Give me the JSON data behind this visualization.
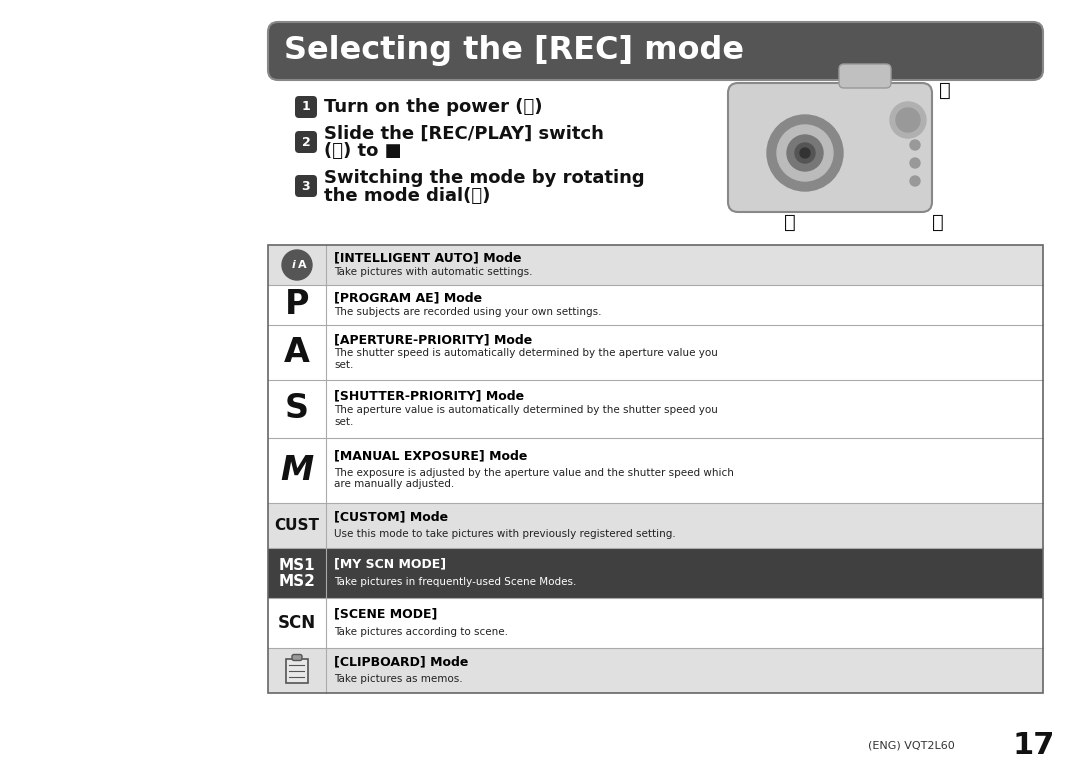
{
  "bg_color": "#ffffff",
  "title": "Selecting the [REC] mode",
  "table_rows": [
    {
      "icon": "iA",
      "icon_style": "circle_ia",
      "title": "[INTELLIGENT AUTO] Mode",
      "desc": "Take pictures with automatic settings.",
      "bg": "#e0e0e0"
    },
    {
      "icon": "P",
      "icon_style": "plain_large",
      "title": "[PROGRAM AE] Mode",
      "desc": "The subjects are recorded using your own settings.",
      "bg": "#ffffff"
    },
    {
      "icon": "A",
      "icon_style": "plain_large",
      "title": "[APERTURE-PRIORITY] Mode",
      "desc": "The shutter speed is automatically determined by the aperture value you\nset.",
      "bg": "#ffffff"
    },
    {
      "icon": "S",
      "icon_style": "plain_large",
      "title": "[SHUTTER-PRIORITY] Mode",
      "desc": "The aperture value is automatically determined by the shutter speed you\nset.",
      "bg": "#ffffff"
    },
    {
      "icon": "M",
      "icon_style": "plain_large",
      "title": "[MANUAL EXPOSURE] Mode",
      "desc": "The exposure is adjusted by the aperture value and the shutter speed which\nare manually adjusted.",
      "bg": "#ffffff"
    },
    {
      "icon": "CUST",
      "icon_style": "plain_small",
      "title": "[CUSTOM] Mode",
      "desc": "Use this mode to take pictures with previously registered setting.",
      "bg": "#e0e0e0"
    },
    {
      "icon": "MS1\nMS2",
      "icon_style": "ms_style",
      "title": "[MY SCN MODE]",
      "desc": "Take pictures in frequently-used Scene Modes.",
      "bg": "#404040",
      "title_color": "#ffffff",
      "desc_color": "#ffffff"
    },
    {
      "icon": "SCN",
      "icon_style": "scn_style",
      "title": "[SCENE MODE]",
      "desc": "Take pictures according to scene.",
      "bg": "#ffffff"
    },
    {
      "icon": "clip",
      "icon_style": "clip_style",
      "title": "[CLIPBOARD] Mode",
      "desc": "Take pictures as memos.",
      "bg": "#e0e0e0"
    }
  ],
  "footer_text": "(ENG) VQT2L60",
  "page_num": "17",
  "step1": "Turn on the power (Ⓐ)",
  "step2_line1": "Slide the [REC/PLAY] switch",
  "step2_line2": "(Ⓑ) to ■",
  "step3_line1": "Switching the mode by rotating",
  "step3_line2": "the mode dial(Ⓒ)"
}
